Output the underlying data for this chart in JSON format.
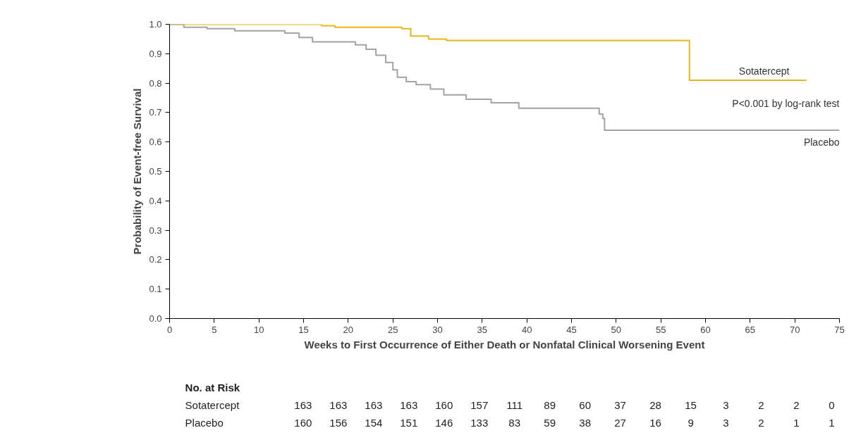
{
  "chart_data": {
    "type": "step",
    "xlabel": "Weeks to First Occurrence of Either Death or Nonfatal Clinical Worsening Event",
    "ylabel": "Probability of Event-free Survival",
    "xlim": [
      0,
      75
    ],
    "xticks": [
      0,
      5,
      10,
      15,
      20,
      25,
      30,
      35,
      40,
      45,
      50,
      55,
      60,
      65,
      70,
      75
    ],
    "ylim": [
      0,
      1
    ],
    "yticks": [
      {
        "value": 0,
        "label": "0.0"
      },
      {
        "value": 0.1,
        "label": "0.1"
      },
      {
        "value": 0.2,
        "label": "0.2"
      },
      {
        "value": 0.3,
        "label": "0.3"
      },
      {
        "value": 0.4,
        "label": "0.4"
      },
      {
        "value": 0.5,
        "label": "0.5"
      },
      {
        "value": 0.6,
        "label": "0.6"
      },
      {
        "value": 0.7,
        "label": "0.7"
      },
      {
        "value": 0.8,
        "label": "0.8"
      },
      {
        "value": 0.9,
        "label": "0.9"
      },
      {
        "value": 1,
        "label": "1.0"
      }
    ],
    "grid": false,
    "series": [
      {
        "name": "Sotatercept",
        "color": "#e6b919",
        "x": [
          0,
          17,
          18.5,
          26,
          27,
          29,
          31,
          58.2,
          71.3
        ],
        "values": [
          1,
          0.995,
          0.99,
          0.985,
          0.96,
          0.95,
          0.945,
          0.81,
          0.81
        ]
      },
      {
        "name": "Placebo",
        "color": "#a3a3a3",
        "x": [
          0,
          1.6,
          4.2,
          7.3,
          12.9,
          14.5,
          16,
          20.8,
          22,
          23.1,
          24.2,
          25,
          25.5,
          26.5,
          27.6,
          29.2,
          30.7,
          33.2,
          36,
          39.1,
          48.1,
          48.5,
          48.7,
          75
        ],
        "values": [
          1,
          0.99,
          0.985,
          0.978,
          0.97,
          0.955,
          0.94,
          0.93,
          0.915,
          0.895,
          0.87,
          0.845,
          0.82,
          0.805,
          0.795,
          0.78,
          0.76,
          0.745,
          0.733,
          0.715,
          0.695,
          0.68,
          0.64,
          0.64
        ]
      }
    ],
    "annotations": [
      "P<0.001 by log-rank test",
      "No. at Risk",
      "Sotatercept 163 163 163 163 160 157 111 89 60 37 28 15 3 2 2 0",
      "Placebo 160 156 154 151 146 133 83 59 38 27 16 9 3 2 1 1"
    ]
  }
}
